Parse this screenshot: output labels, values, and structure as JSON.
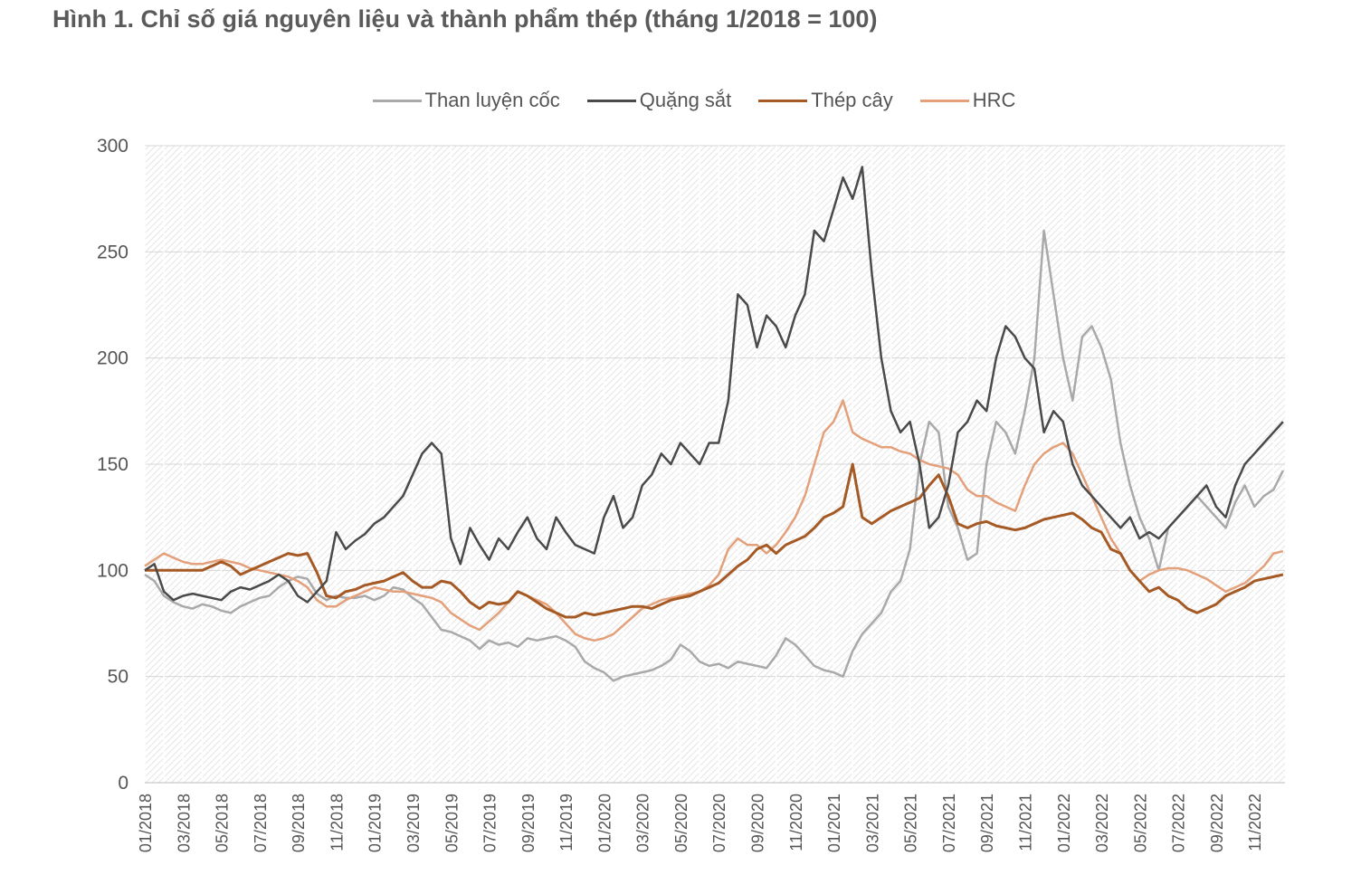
{
  "title": "Hình 1. Chỉ số giá nguyên liệu và thành phẩm thép (tháng 1/2018 = 100)",
  "chart_data": {
    "type": "line",
    "title": "Hình 1. Chỉ số giá nguyên liệu và thành phẩm thép (tháng 1/2018 = 100)",
    "xlabel": "",
    "ylabel": "",
    "ylim": [
      0,
      300
    ],
    "yticks": [
      "0",
      "50",
      "100",
      "150",
      "200",
      "250",
      "300"
    ],
    "grid": true,
    "legend_position": "top-center",
    "x_start": "2018-01",
    "x_end": "2022-12",
    "x_ticks": [
      "01/2018",
      "03/2018",
      "05/2018",
      "07/2018",
      "09/2018",
      "11/2018",
      "01/2019",
      "03/2019",
      "05/2019",
      "07/2019",
      "09/2019",
      "11/2019",
      "01/2020",
      "03/2020",
      "05/2020",
      "07/2020",
      "09/2020",
      "11/2020",
      "01/2021",
      "03/2021",
      "05/2021",
      "07/2021",
      "09/2021",
      "11/2021",
      "01/2022",
      "03/2022",
      "05/2022",
      "07/2022",
      "09/2022",
      "11/2022"
    ],
    "series": [
      {
        "name": "Than luyện cốc",
        "color": "#a9a9a9",
        "x": [
          0,
          0.5,
          1,
          1.5,
          2,
          2.5,
          3,
          3.5,
          4,
          4.5,
          5,
          5.5,
          6,
          6.5,
          7,
          7.5,
          8,
          8.5,
          9,
          9.5,
          10,
          10.5,
          11,
          11.5,
          12,
          12.5,
          13,
          13.5,
          14,
          14.5,
          15,
          15.5,
          16,
          16.5,
          17,
          17.5,
          18,
          18.5,
          19,
          19.5,
          20,
          20.5,
          21,
          21.5,
          22,
          22.5,
          23,
          23.5,
          24,
          24.5,
          25,
          25.5,
          26,
          26.5,
          27,
          27.5,
          28,
          28.5,
          29,
          29.5,
          30,
          30.5,
          31,
          31.5,
          32,
          32.5,
          33,
          33.5,
          34,
          34.5,
          35,
          35.5,
          36,
          36.5,
          37,
          37.5,
          38,
          38.5,
          39,
          39.5,
          40,
          40.5,
          41,
          41.5,
          42,
          42.5,
          43,
          43.5,
          44,
          44.5,
          45,
          45.5,
          46,
          46.5,
          47,
          47.5,
          48,
          48.5,
          49,
          49.5,
          50,
          50.5,
          51,
          51.5,
          52,
          52.5,
          53,
          53.5,
          54,
          54.5,
          55,
          55.5,
          56,
          56.5,
          57,
          57.5,
          58,
          58.5,
          59,
          59.5
        ],
        "values": [
          98,
          95,
          88,
          85,
          83,
          82,
          84,
          83,
          81,
          80,
          83,
          85,
          87,
          88,
          92,
          95,
          97,
          96,
          89,
          86,
          88,
          87,
          87,
          88,
          86,
          88,
          92,
          91,
          87,
          84,
          78,
          72,
          71,
          69,
          67,
          63,
          67,
          65,
          66,
          64,
          68,
          67,
          68,
          69,
          67,
          64,
          57,
          54,
          52,
          48,
          50,
          51,
          52,
          53,
          55,
          58,
          65,
          62,
          57,
          55,
          56,
          54,
          57,
          56,
          55,
          54,
          60,
          68,
          65,
          60,
          55,
          53,
          52,
          50,
          62,
          70,
          75,
          80,
          90,
          95,
          110,
          150,
          170,
          165,
          130,
          120,
          105,
          108,
          150,
          170,
          165,
          155,
          175,
          200,
          260,
          230,
          200,
          180,
          210,
          215,
          205,
          190,
          160,
          140,
          125,
          115,
          100,
          120,
          125,
          130,
          135,
          130,
          125,
          120,
          132,
          140,
          130,
          135,
          138,
          147
        ]
      },
      {
        "name": "Quặng sắt",
        "color": "#4a4a4a",
        "x": [
          0,
          0.5,
          1,
          1.5,
          2,
          2.5,
          3,
          3.5,
          4,
          4.5,
          5,
          5.5,
          6,
          6.5,
          7,
          7.5,
          8,
          8.5,
          9,
          9.5,
          10,
          10.5,
          11,
          11.5,
          12,
          12.5,
          13,
          13.5,
          14,
          14.5,
          15,
          15.5,
          16,
          16.5,
          17,
          17.5,
          18,
          18.5,
          19,
          19.5,
          20,
          20.5,
          21,
          21.5,
          22,
          22.5,
          23,
          23.5,
          24,
          24.5,
          25,
          25.5,
          26,
          26.5,
          27,
          27.5,
          28,
          28.5,
          29,
          29.5,
          30,
          30.5,
          31,
          31.5,
          32,
          32.5,
          33,
          33.5,
          34,
          34.5,
          35,
          35.5,
          36,
          36.5,
          37,
          37.5,
          38,
          38.5,
          39,
          39.5,
          40,
          40.5,
          41,
          41.5,
          42,
          42.5,
          43,
          43.5,
          44,
          44.5,
          45,
          45.5,
          46,
          46.5,
          47,
          47.5,
          48,
          48.5,
          49,
          49.5,
          50,
          50.5,
          51,
          51.5,
          52,
          52.5,
          53,
          53.5,
          54,
          54.5,
          55,
          55.5,
          56,
          56.5,
          57,
          57.5,
          58,
          58.5,
          59,
          59.5
        ],
        "values": [
          100,
          103,
          90,
          86,
          88,
          89,
          88,
          87,
          86,
          90,
          92,
          91,
          93,
          95,
          98,
          95,
          88,
          85,
          90,
          95,
          118,
          110,
          114,
          117,
          122,
          125,
          130,
          135,
          145,
          155,
          160,
          155,
          115,
          103,
          120,
          112,
          105,
          115,
          110,
          118,
          125,
          115,
          110,
          125,
          118,
          112,
          110,
          108,
          125,
          135,
          120,
          125,
          140,
          145,
          155,
          150,
          160,
          155,
          150,
          160,
          160,
          180,
          230,
          225,
          205,
          220,
          215,
          205,
          220,
          230,
          260,
          255,
          270,
          285,
          275,
          290,
          240,
          200,
          175,
          165,
          170,
          150,
          120,
          125,
          140,
          165,
          170,
          180,
          175,
          200,
          215,
          210,
          200,
          195,
          165,
          175,
          170,
          150,
          140,
          135,
          130,
          125,
          120,
          125,
          115,
          118,
          115,
          120,
          125,
          130,
          135,
          140,
          130,
          125,
          140,
          150,
          155,
          160,
          165,
          170
        ]
      },
      {
        "name": "Thép cây",
        "color": "#a55a25",
        "x": [
          0,
          0.5,
          1,
          1.5,
          2,
          2.5,
          3,
          3.5,
          4,
          4.5,
          5,
          5.5,
          6,
          6.5,
          7,
          7.5,
          8,
          8.5,
          9,
          9.5,
          10,
          10.5,
          11,
          11.5,
          12,
          12.5,
          13,
          13.5,
          14,
          14.5,
          15,
          15.5,
          16,
          16.5,
          17,
          17.5,
          18,
          18.5,
          19,
          19.5,
          20,
          20.5,
          21,
          21.5,
          22,
          22.5,
          23,
          23.5,
          24,
          24.5,
          25,
          25.5,
          26,
          26.5,
          27,
          27.5,
          28,
          28.5,
          29,
          29.5,
          30,
          30.5,
          31,
          31.5,
          32,
          32.5,
          33,
          33.5,
          34,
          34.5,
          35,
          35.5,
          36,
          36.5,
          37,
          37.5,
          38,
          38.5,
          39,
          39.5,
          40,
          40.5,
          41,
          41.5,
          42,
          42.5,
          43,
          43.5,
          44,
          44.5,
          45,
          45.5,
          46,
          46.5,
          47,
          47.5,
          48,
          48.5,
          49,
          49.5,
          50,
          50.5,
          51,
          51.5,
          52,
          52.5,
          53,
          53.5,
          54,
          54.5,
          55,
          55.5,
          56,
          56.5,
          57,
          57.5,
          58,
          58.5,
          59,
          59.5
        ],
        "values": [
          100,
          100,
          100,
          100,
          100,
          100,
          100,
          102,
          104,
          102,
          98,
          100,
          102,
          104,
          106,
          108,
          107,
          108,
          99,
          88,
          87,
          90,
          91,
          93,
          94,
          95,
          97,
          99,
          95,
          92,
          92,
          95,
          94,
          90,
          85,
          82,
          85,
          84,
          85,
          90,
          88,
          85,
          82,
          80,
          78,
          78,
          80,
          79,
          80,
          81,
          82,
          83,
          83,
          82,
          84,
          86,
          87,
          88,
          90,
          92,
          94,
          98,
          102,
          105,
          110,
          112,
          108,
          112,
          114,
          116,
          120,
          125,
          127,
          130,
          150,
          125,
          122,
          125,
          128,
          130,
          132,
          134,
          140,
          145,
          135,
          122,
          120,
          122,
          123,
          121,
          120,
          119,
          120,
          122,
          124,
          125,
          126,
          127,
          124,
          120,
          118,
          110,
          108,
          100,
          95,
          90,
          92,
          88,
          86,
          82,
          80,
          82,
          84,
          88,
          90,
          92,
          95,
          96,
          97,
          98
        ]
      },
      {
        "name": "HRC",
        "color": "#e3a07a",
        "x": [
          0,
          0.5,
          1,
          1.5,
          2,
          2.5,
          3,
          3.5,
          4,
          4.5,
          5,
          5.5,
          6,
          6.5,
          7,
          7.5,
          8,
          8.5,
          9,
          9.5,
          10,
          10.5,
          11,
          11.5,
          12,
          12.5,
          13,
          13.5,
          14,
          14.5,
          15,
          15.5,
          16,
          16.5,
          17,
          17.5,
          18,
          18.5,
          19,
          19.5,
          20,
          20.5,
          21,
          21.5,
          22,
          22.5,
          23,
          23.5,
          24,
          24.5,
          25,
          25.5,
          26,
          26.5,
          27,
          27.5,
          28,
          28.5,
          29,
          29.5,
          30,
          30.5,
          31,
          31.5,
          32,
          32.5,
          33,
          33.5,
          34,
          34.5,
          35,
          35.5,
          36,
          36.5,
          37,
          37.5,
          38,
          38.5,
          39,
          39.5,
          40,
          40.5,
          41,
          41.5,
          42,
          42.5,
          43,
          43.5,
          44,
          44.5,
          45,
          45.5,
          46,
          46.5,
          47,
          47.5,
          48,
          48.5,
          49,
          49.5,
          50,
          50.5,
          51,
          51.5,
          52,
          52.5,
          53,
          53.5,
          54,
          54.5,
          55,
          55.5,
          56,
          56.5,
          57,
          57.5,
          58,
          58.5,
          59,
          59.5
        ],
        "values": [
          102,
          105,
          108,
          106,
          104,
          103,
          103,
          104,
          105,
          104,
          103,
          101,
          100,
          99,
          98,
          97,
          95,
          92,
          86,
          83,
          83,
          86,
          88,
          90,
          92,
          91,
          90,
          90,
          89,
          88,
          87,
          85,
          80,
          77,
          74,
          72,
          76,
          80,
          85,
          90,
          88,
          86,
          84,
          80,
          75,
          70,
          68,
          67,
          68,
          70,
          74,
          78,
          82,
          84,
          86,
          87,
          88,
          89,
          90,
          93,
          98,
          110,
          115,
          112,
          112,
          108,
          112,
          118,
          125,
          135,
          150,
          165,
          170,
          180,
          165,
          162,
          160,
          158,
          158,
          156,
          155,
          152,
          150,
          149,
          148,
          145,
          138,
          135,
          135,
          132,
          130,
          128,
          140,
          150,
          155,
          158,
          160,
          155,
          145,
          135,
          125,
          115,
          108,
          100,
          95,
          98,
          100,
          101,
          101,
          100,
          98,
          96,
          93,
          90,
          92,
          94,
          98,
          102,
          108,
          109
        ]
      }
    ]
  }
}
